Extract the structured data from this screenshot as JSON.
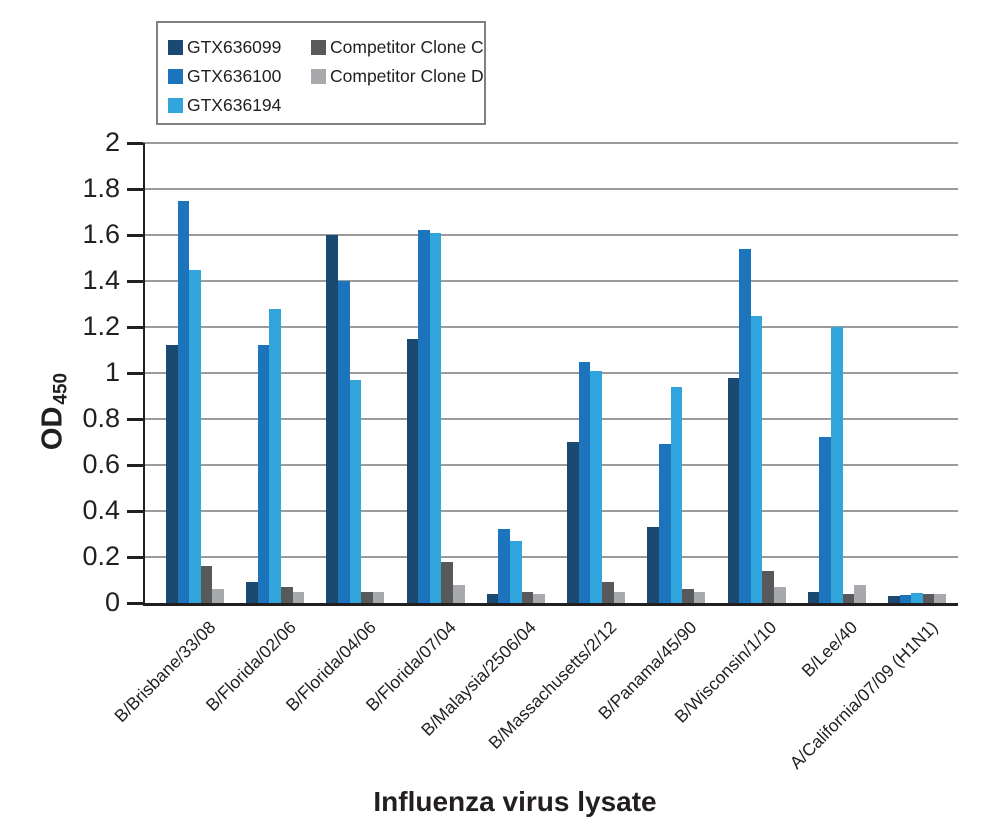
{
  "chart_data": {
    "type": "bar",
    "title": "",
    "xlabel": "Influenza virus lysate",
    "ylabel_main": "OD",
    "ylabel_sub": "450",
    "ylim": [
      0,
      2
    ],
    "ytick_step": 0.2,
    "yticks": [
      "0",
      "0.2",
      "0.4",
      "0.6",
      "0.8",
      "1",
      "1.2",
      "1.4",
      "1.6",
      "1.8",
      "2"
    ],
    "grid": true,
    "legend_position": "top-left",
    "categories": [
      "B/Brisbane/33/08",
      "B/Florida/02/06",
      "B/Florida/04/06",
      "B/Florida/07/04",
      "B/Malaysia/2506/04",
      "B/Massachusetts/2/12",
      "B/Panama/45/90",
      "B/Wisconsin/1/10",
      "B/Lee/40",
      "A/California/07/09 (H1N1)"
    ],
    "series": [
      {
        "name": "GTX636099",
        "color": "#1A4971",
        "values": [
          1.12,
          0.09,
          1.6,
          1.15,
          0.04,
          0.7,
          0.33,
          0.98,
          0.05,
          0.03
        ]
      },
      {
        "name": "GTX636100",
        "color": "#1C75BC",
        "values": [
          1.75,
          1.12,
          1.4,
          1.62,
          0.32,
          1.05,
          0.69,
          1.54,
          0.72,
          0.035
        ]
      },
      {
        "name": "GTX636194",
        "color": "#31A5DC",
        "values": [
          1.45,
          1.28,
          0.97,
          1.61,
          0.27,
          1.01,
          0.94,
          1.25,
          1.2,
          0.045
        ]
      },
      {
        "name": "Competitor Clone C",
        "color": "#58595B",
        "values": [
          0.16,
          0.07,
          0.05,
          0.18,
          0.05,
          0.09,
          0.06,
          0.14,
          0.04,
          0.04
        ]
      },
      {
        "name": "Competitor Clone D",
        "color": "#A7A9AC",
        "values": [
          0.06,
          0.05,
          0.05,
          0.08,
          0.04,
          0.05,
          0.05,
          0.07,
          0.08,
          0.04
        ]
      }
    ]
  },
  "colors": {
    "text": "#231f20",
    "grid": "#9b9b9b",
    "axis": "#231f20",
    "legend_border": "#808080",
    "background": "#ffffff"
  }
}
